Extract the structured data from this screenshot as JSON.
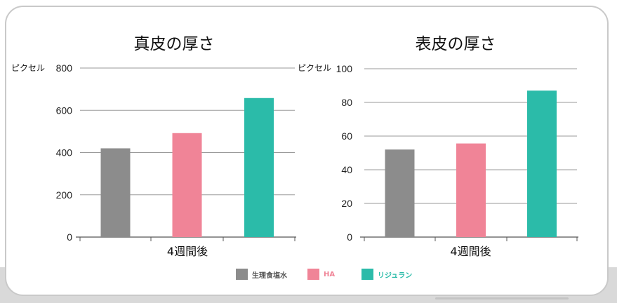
{
  "chart_data": [
    {
      "type": "bar",
      "title": "真皮の厚さ",
      "ylabel": "ピクセル",
      "xlabel": "4週間後",
      "ylim": [
        0,
        800
      ],
      "yticks": [
        0,
        200,
        400,
        600,
        800
      ],
      "categories": [
        "生理食塩水",
        "HA",
        "リジュラン"
      ],
      "values": [
        420,
        492,
        658
      ],
      "colors": [
        "#8c8c8c",
        "#f08497",
        "#2bbba9"
      ]
    },
    {
      "type": "bar",
      "title": "表皮の厚さ",
      "ylabel": "ピクセル",
      "xlabel": "4週間後",
      "ylim": [
        0,
        100
      ],
      "yticks": [
        0,
        20,
        40,
        60,
        80,
        100
      ],
      "categories": [
        "生理食塩水",
        "HA",
        "リジュラン"
      ],
      "values": [
        52,
        55.6,
        87
      ],
      "colors": [
        "#8c8c8c",
        "#f08497",
        "#2bbba9"
      ]
    }
  ],
  "legend": [
    {
      "label": "生理食塩水",
      "color": "#8c8c8c",
      "text_color": "#555555"
    },
    {
      "label": "HA",
      "color": "#f08497",
      "text_color": "#f08497"
    },
    {
      "label": "リジュラン",
      "color": "#2bbba9",
      "text_color": "#2bbba9"
    }
  ]
}
